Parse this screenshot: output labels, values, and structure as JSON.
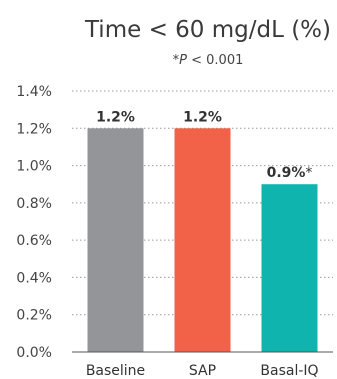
{
  "chart_data": {
    "type": "bar",
    "title": "Time < 60 mg/dL (%)",
    "subtitle": {
      "prefix": "*",
      "italic": "P",
      "suffix": " < 0.001"
    },
    "categories": [
      "Baseline",
      "SAP",
      "Basal-IQ"
    ],
    "values": [
      1.2,
      1.2,
      0.9
    ],
    "value_labels": [
      "1.2%",
      "1.2%",
      "0.9%*"
    ],
    "bar_colors": [
      "#939598",
      "#f26249",
      "#10b4ae"
    ],
    "ylim": [
      0,
      1.4
    ],
    "yticks": [
      0,
      0.2,
      0.4,
      0.6,
      0.8,
      1.0,
      1.2,
      1.4
    ],
    "ytick_labels": [
      "0.0%",
      "0.2%",
      "0.4%",
      "0.6%",
      "0.8%",
      "1.0%",
      "1.2%",
      "1.4%"
    ],
    "grid": true,
    "xlabel": "",
    "ylabel": ""
  }
}
